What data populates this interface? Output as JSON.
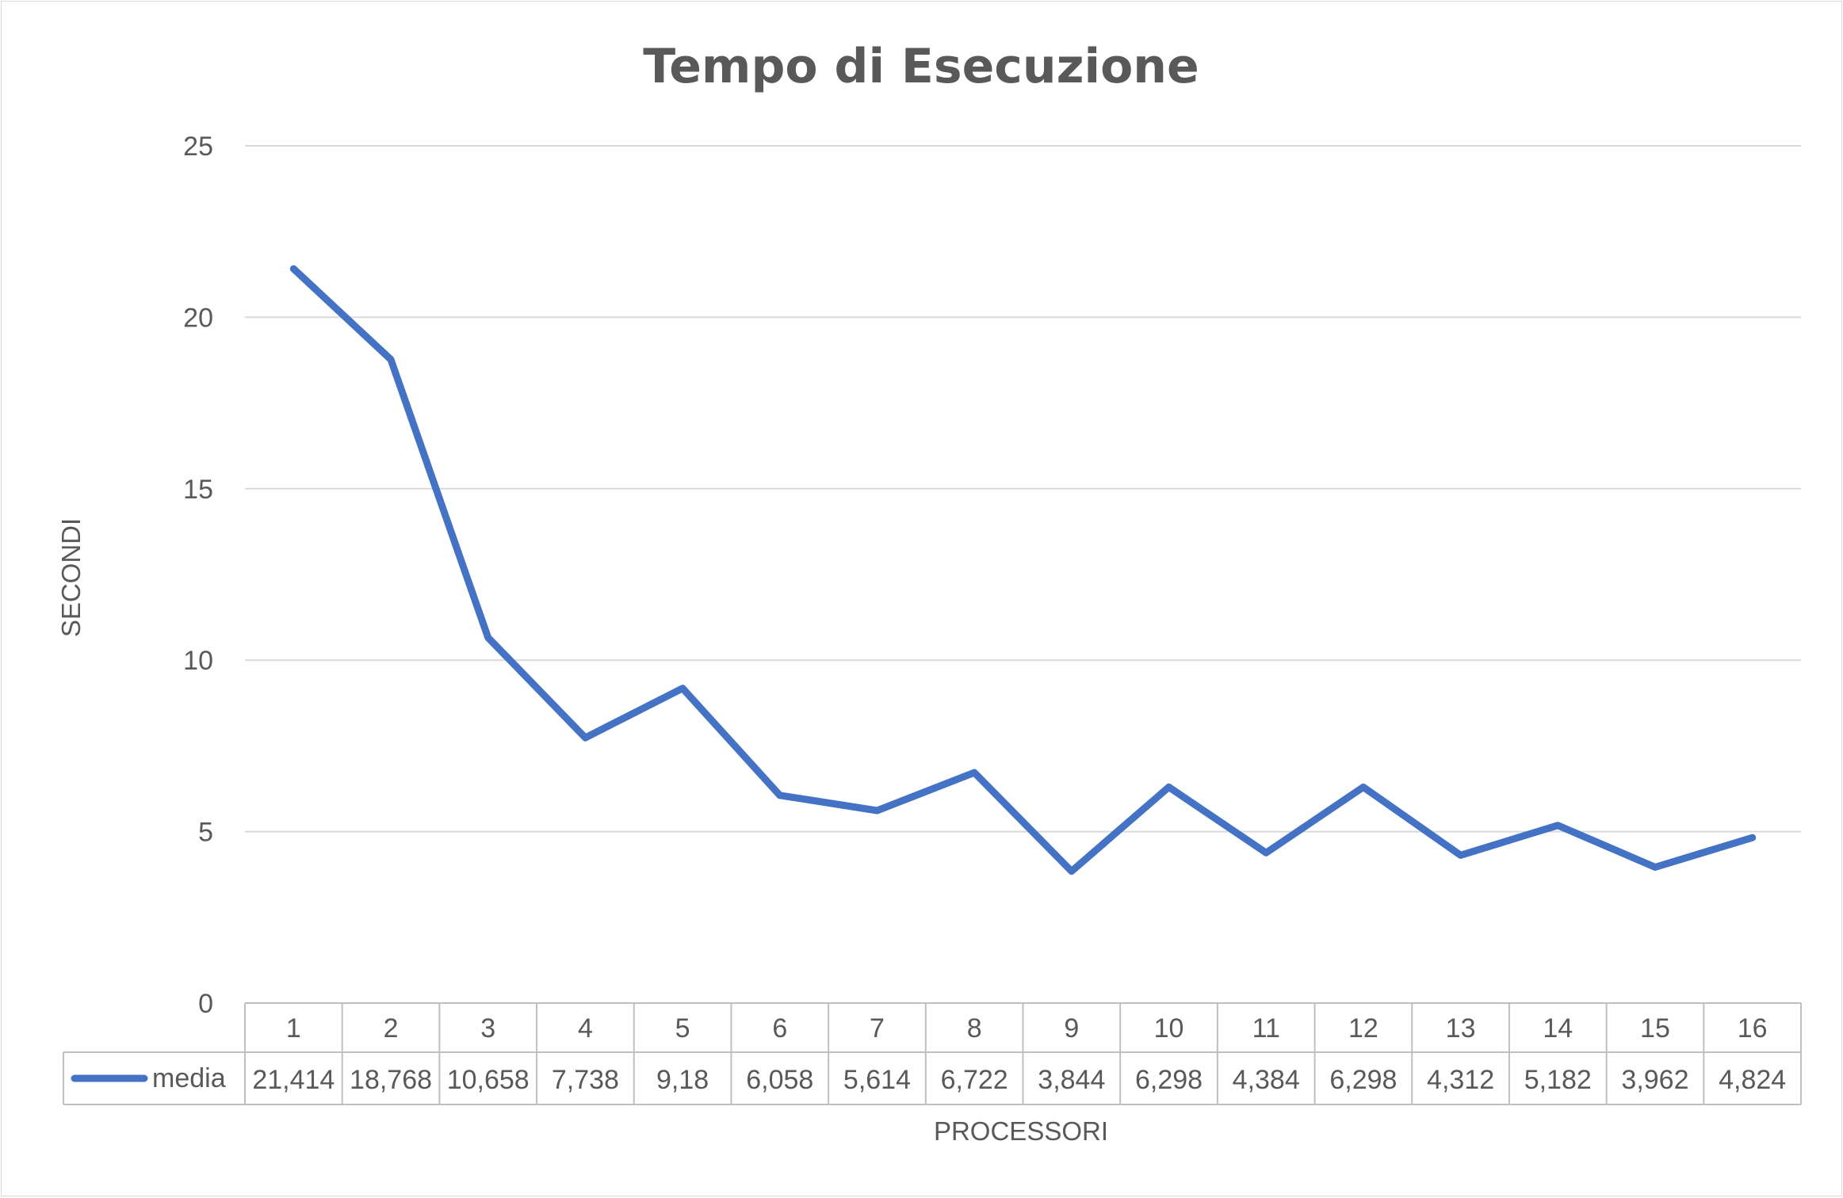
{
  "chart_data": {
    "type": "line",
    "title": "Tempo di Esecuzione",
    "xlabel": "PROCESSORI",
    "ylabel": "SECONDI",
    "categories": [
      "1",
      "2",
      "3",
      "4",
      "5",
      "6",
      "7",
      "8",
      "9",
      "10",
      "11",
      "12",
      "13",
      "14",
      "15",
      "16"
    ],
    "series": [
      {
        "name": "media",
        "color": "#4472C4",
        "values": [
          21.414,
          18.768,
          10.658,
          7.738,
          9.18,
          6.058,
          5.614,
          6.722,
          3.844,
          6.298,
          4.384,
          6.298,
          4.312,
          5.182,
          3.962,
          4.824
        ],
        "labels": [
          "21,414",
          "18,768",
          "10,658",
          "7,738",
          "9,18",
          "6,058",
          "5,614",
          "6,722",
          "3,844",
          "6,298",
          "4,384",
          "6,298",
          "4,312",
          "5,182",
          "3,962",
          "4,824"
        ]
      }
    ],
    "ylim": [
      0,
      25
    ],
    "yticks": [
      "0",
      "5",
      "10",
      "15",
      "20",
      "25"
    ],
    "grid": true,
    "data_table": true
  }
}
